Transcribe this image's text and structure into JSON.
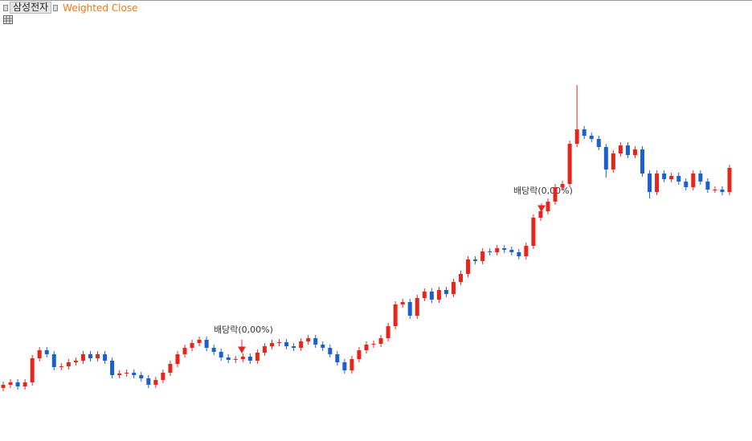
{
  "header": {
    "symbol": "삼성전자",
    "indicator": "Weighted Close"
  },
  "chart_data": {
    "type": "candlestick",
    "up_color": "#e8251d",
    "down_color": "#1c5fd0",
    "ylim": [
      0,
      548
    ],
    "open": [
      66,
      70,
      73,
      68,
      73,
      103,
      113,
      108,
      92,
      93,
      98,
      100,
      108,
      103,
      108,
      100,
      82,
      84,
      85,
      82,
      78,
      70,
      76,
      85,
      96,
      108,
      116,
      122,
      126,
      116,
      111,
      104,
      101,
      102,
      105,
      100,
      110,
      118,
      122,
      123,
      118,
      116,
      124,
      128,
      120,
      116,
      108,
      98,
      88,
      102,
      113,
      120,
      121,
      128,
      143,
      170,
      173,
      156,
      178,
      186,
      176,
      188,
      183,
      198,
      208,
      226,
      224,
      236,
      235,
      240,
      238,
      235,
      230,
      243,
      278,
      286,
      298,
      316,
      320,
      370,
      388,
      380,
      376,
      366,
      338,
      358,
      368,
      356,
      363,
      333,
      310,
      333,
      326,
      330,
      323,
      316,
      333,
      323,
      313,
      313,
      310
    ],
    "high": [
      74,
      77,
      77,
      77,
      107,
      117,
      117,
      112,
      97,
      102,
      104,
      112,
      112,
      112,
      112,
      104,
      88,
      89,
      89,
      86,
      82,
      80,
      89,
      100,
      112,
      120,
      126,
      130,
      130,
      120,
      115,
      108,
      106,
      109,
      109,
      114,
      122,
      126,
      127,
      127,
      122,
      128,
      132,
      132,
      124,
      120,
      112,
      102,
      106,
      117,
      124,
      125,
      132,
      147,
      174,
      177,
      177,
      182,
      190,
      190,
      192,
      192,
      202,
      212,
      230,
      230,
      240,
      240,
      244,
      244,
      242,
      239,
      247,
      282,
      290,
      302,
      320,
      324,
      374,
      443,
      392,
      384,
      380,
      370,
      362,
      372,
      372,
      367,
      367,
      337,
      337,
      337,
      334,
      334,
      327,
      337,
      337,
      327,
      317,
      317,
      344
    ],
    "low": [
      62,
      66,
      64,
      64,
      69,
      99,
      104,
      88,
      88,
      89,
      94,
      96,
      99,
      99,
      96,
      78,
      78,
      80,
      78,
      74,
      66,
      66,
      72,
      81,
      92,
      104,
      112,
      118,
      112,
      107,
      100,
      97,
      97,
      98,
      96,
      96,
      106,
      114,
      118,
      114,
      112,
      112,
      120,
      116,
      112,
      104,
      94,
      84,
      84,
      98,
      109,
      116,
      117,
      124,
      139,
      166,
      152,
      152,
      174,
      172,
      172,
      179,
      179,
      194,
      204,
      220,
      220,
      231,
      231,
      234,
      231,
      226,
      226,
      239,
      274,
      282,
      294,
      312,
      316,
      366,
      376,
      372,
      362,
      328,
      334,
      354,
      352,
      352,
      329,
      302,
      306,
      322,
      322,
      319,
      312,
      312,
      319,
      309,
      309,
      306,
      306
    ],
    "close": [
      70,
      73,
      68,
      73,
      103,
      113,
      108,
      92,
      93,
      98,
      100,
      108,
      103,
      108,
      100,
      82,
      84,
      85,
      82,
      78,
      70,
      76,
      85,
      96,
      108,
      116,
      122,
      126,
      116,
      111,
      104,
      101,
      102,
      105,
      100,
      110,
      118,
      122,
      123,
      118,
      116,
      124,
      128,
      120,
      116,
      108,
      98,
      88,
      102,
      113,
      120,
      121,
      128,
      143,
      170,
      173,
      156,
      178,
      186,
      176,
      188,
      183,
      198,
      208,
      226,
      224,
      236,
      235,
      240,
      238,
      235,
      230,
      243,
      278,
      286,
      298,
      316,
      320,
      370,
      388,
      380,
      376,
      366,
      338,
      358,
      368,
      356,
      363,
      333,
      310,
      333,
      326,
      330,
      323,
      316,
      333,
      323,
      313,
      313,
      310,
      340
    ],
    "annotations": [
      "배당락(0,00%)",
      "배당락(0,00%)"
    ]
  }
}
